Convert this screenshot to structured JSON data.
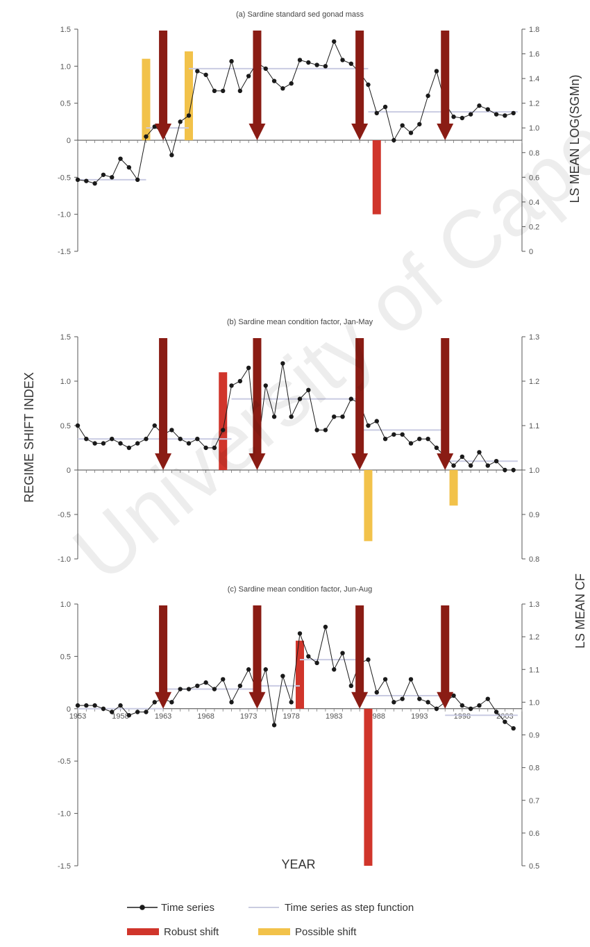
{
  "labels": {
    "left_axis": "REGIME SHIFT INDEX",
    "right_axis_a": "LS MEAN LOG(SGMn)",
    "right_axis_bc": "LS MEAN CF",
    "x_axis": "YEAR"
  },
  "legend": {
    "time_series": "Time series",
    "step_function": "Time series as step function",
    "robust": "Robust shift",
    "possible": "Possible shift"
  },
  "watermark": "University of Cape Town",
  "colors": {
    "robust": "#d0352b",
    "possible": "#f2c24a",
    "arrow": "#8a1c14",
    "series": "#1a1a1a",
    "step": "#c9cbe2"
  },
  "chart_data": [
    {
      "type": "line",
      "title": "(a) Sardine standard sed gonad mass",
      "left_ticks": [
        "1.5",
        "1.0",
        "0.5",
        "0",
        "-0.5",
        "-1.0",
        "-1.5"
      ],
      "right_ticks": [
        "1.8",
        "1.6",
        "1.4",
        "1.2",
        "1.0",
        "0.8",
        "0.6",
        "0.4",
        "0.2",
        "0"
      ],
      "left_ylim": [
        -1.5,
        1.5
      ],
      "right_ylim": [
        0,
        1.8
      ],
      "x_range": [
        1953,
        2005
      ],
      "x_ticks": [],
      "series_values": [
        {
          "x": 1953,
          "y": 0.58
        },
        {
          "x": 1954,
          "y": 0.57
        },
        {
          "x": 1955,
          "y": 0.55
        },
        {
          "x": 1956,
          "y": 0.62
        },
        {
          "x": 1957,
          "y": 0.6
        },
        {
          "x": 1958,
          "y": 0.75
        },
        {
          "x": 1959,
          "y": 0.68
        },
        {
          "x": 1960,
          "y": 0.58
        },
        {
          "x": 1961,
          "y": 0.93
        },
        {
          "x": 1962,
          "y": 1.01
        },
        {
          "x": 1963,
          "y": 0.96
        },
        {
          "x": 1964,
          "y": 0.78
        },
        {
          "x": 1965,
          "y": 1.05
        },
        {
          "x": 1966,
          "y": 1.1
        },
        {
          "x": 1967,
          "y": 1.46
        },
        {
          "x": 1968,
          "y": 1.43
        },
        {
          "x": 1969,
          "y": 1.3
        },
        {
          "x": 1970,
          "y": 1.3
        },
        {
          "x": 1971,
          "y": 1.54
        },
        {
          "x": 1972,
          "y": 1.3
        },
        {
          "x": 1973,
          "y": 1.42
        },
        {
          "x": 1974,
          "y": 1.53
        },
        {
          "x": 1975,
          "y": 1.48
        },
        {
          "x": 1976,
          "y": 1.38
        },
        {
          "x": 1977,
          "y": 1.32
        },
        {
          "x": 1978,
          "y": 1.36
        },
        {
          "x": 1979,
          "y": 1.55
        },
        {
          "x": 1980,
          "y": 1.53
        },
        {
          "x": 1981,
          "y": 1.51
        },
        {
          "x": 1982,
          "y": 1.5
        },
        {
          "x": 1983,
          "y": 1.7
        },
        {
          "x": 1984,
          "y": 1.55
        },
        {
          "x": 1985,
          "y": 1.52
        },
        {
          "x": 1986,
          "y": 1.45
        },
        {
          "x": 1987,
          "y": 1.35
        },
        {
          "x": 1988,
          "y": 1.12
        },
        {
          "x": 1989,
          "y": 1.17
        },
        {
          "x": 1990,
          "y": 0.9
        },
        {
          "x": 1991,
          "y": 1.02
        },
        {
          "x": 1992,
          "y": 0.96
        },
        {
          "x": 1993,
          "y": 1.03
        },
        {
          "x": 1994,
          "y": 1.26
        },
        {
          "x": 1995,
          "y": 1.46
        },
        {
          "x": 1996,
          "y": 1.2
        },
        {
          "x": 1997,
          "y": 1.09
        },
        {
          "x": 1998,
          "y": 1.08
        },
        {
          "x": 1999,
          "y": 1.11
        },
        {
          "x": 2000,
          "y": 1.18
        },
        {
          "x": 2001,
          "y": 1.15
        },
        {
          "x": 2002,
          "y": 1.11
        },
        {
          "x": 2003,
          "y": 1.1
        },
        {
          "x": 2004,
          "y": 1.12
        }
      ],
      "step": [
        {
          "x0": 1953,
          "x1": 1961,
          "y": 0.58
        },
        {
          "x0": 1961,
          "x1": 1966,
          "y": 1.0
        },
        {
          "x0": 1966,
          "x1": 1987,
          "y": 1.48
        },
        {
          "x0": 1987,
          "x1": 2004.5,
          "y": 1.13
        }
      ],
      "bars": [
        {
          "kind": "possible",
          "year": 1961,
          "value": 1.1
        },
        {
          "kind": "possible",
          "year": 1966,
          "value": 1.2
        },
        {
          "kind": "robust",
          "year": 1988,
          "value": -1.0
        }
      ],
      "arrows": [
        1963,
        1974,
        1986,
        1996
      ]
    },
    {
      "type": "line",
      "title": "(b) Sardine mean condition factor, Jan-May",
      "left_ticks": [
        "1.5",
        "1.0",
        "0.5",
        "0",
        "-0.5",
        "-1.0"
      ],
      "right_ticks": [
        "1.3",
        "1.2",
        "1.1",
        "1.0",
        "0.9",
        "0.8"
      ],
      "left_ylim": [
        -1.0,
        1.5
      ],
      "right_ylim": [
        0.8,
        1.3
      ],
      "x_range": [
        1953,
        2005
      ],
      "x_ticks": [],
      "series_values": [
        {
          "x": 1953,
          "y": 1.1
        },
        {
          "x": 1954,
          "y": 1.07
        },
        {
          "x": 1955,
          "y": 1.06
        },
        {
          "x": 1956,
          "y": 1.06
        },
        {
          "x": 1957,
          "y": 1.07
        },
        {
          "x": 1958,
          "y": 1.06
        },
        {
          "x": 1959,
          "y": 1.05
        },
        {
          "x": 1960,
          "y": 1.06
        },
        {
          "x": 1961,
          "y": 1.07
        },
        {
          "x": 1962,
          "y": 1.1
        },
        {
          "x": 1963,
          "y": 1.08
        },
        {
          "x": 1964,
          "y": 1.09
        },
        {
          "x": 1965,
          "y": 1.07
        },
        {
          "x": 1966,
          "y": 1.06
        },
        {
          "x": 1967,
          "y": 1.07
        },
        {
          "x": 1968,
          "y": 1.05
        },
        {
          "x": 1969,
          "y": 1.05
        },
        {
          "x": 1970,
          "y": 1.09
        },
        {
          "x": 1971,
          "y": 1.19
        },
        {
          "x": 1972,
          "y": 1.2
        },
        {
          "x": 1973,
          "y": 1.23
        },
        {
          "x": 1974,
          "y": 1.04
        },
        {
          "x": 1975,
          "y": 1.19
        },
        {
          "x": 1976,
          "y": 1.12
        },
        {
          "x": 1977,
          "y": 1.24
        },
        {
          "x": 1978,
          "y": 1.12
        },
        {
          "x": 1979,
          "y": 1.16
        },
        {
          "x": 1980,
          "y": 1.18
        },
        {
          "x": 1981,
          "y": 1.09
        },
        {
          "x": 1982,
          "y": 1.09
        },
        {
          "x": 1983,
          "y": 1.12
        },
        {
          "x": 1984,
          "y": 1.12
        },
        {
          "x": 1985,
          "y": 1.16
        },
        {
          "x": 1986,
          "y": 1.15
        },
        {
          "x": 1987,
          "y": 1.1
        },
        {
          "x": 1988,
          "y": 1.11
        },
        {
          "x": 1989,
          "y": 1.07
        },
        {
          "x": 1990,
          "y": 1.08
        },
        {
          "x": 1991,
          "y": 1.08
        },
        {
          "x": 1992,
          "y": 1.06
        },
        {
          "x": 1993,
          "y": 1.07
        },
        {
          "x": 1994,
          "y": 1.07
        },
        {
          "x": 1995,
          "y": 1.05
        },
        {
          "x": 1996,
          "y": 1.03
        },
        {
          "x": 1997,
          "y": 1.01
        },
        {
          "x": 1998,
          "y": 1.03
        },
        {
          "x": 1999,
          "y": 1.01
        },
        {
          "x": 2000,
          "y": 1.04
        },
        {
          "x": 2001,
          "y": 1.01
        },
        {
          "x": 2002,
          "y": 1.02
        },
        {
          "x": 2003,
          "y": 1.0
        },
        {
          "x": 2004,
          "y": 1.0
        }
      ],
      "step": [
        {
          "x0": 1953,
          "x1": 1971,
          "y": 1.07
        },
        {
          "x0": 1971,
          "x1": 1986,
          "y": 1.16
        },
        {
          "x0": 1986,
          "x1": 1996,
          "y": 1.09
        },
        {
          "x0": 1996,
          "x1": 2004.5,
          "y": 1.02
        }
      ],
      "bars": [
        {
          "kind": "robust",
          "year": 1970,
          "value": 1.1
        },
        {
          "kind": "possible",
          "year": 1987,
          "value": -0.8
        },
        {
          "kind": "possible",
          "year": 1997,
          "value": -0.4
        }
      ],
      "arrows": [
        1963,
        1974,
        1986,
        1996
      ]
    },
    {
      "type": "line",
      "title": "(c) Sardine mean condition factor, Jun-Aug",
      "left_ticks": [
        "1.0",
        "0.5",
        "0",
        "-0.5",
        "-1.0",
        "-1.5"
      ],
      "right_ticks": [
        "1.3",
        "1.2",
        "1.1",
        "1.0",
        "0.9",
        "0.8",
        "0.7",
        "0.6",
        "0.5"
      ],
      "left_ylim": [
        -1.5,
        1.0
      ],
      "right_ylim": [
        0.5,
        1.3
      ],
      "x_range": [
        1953,
        2005
      ],
      "x_ticks": [
        "1953",
        "1958",
        "1963",
        "1968",
        "1973",
        "1978",
        "1983",
        "1988",
        "1993",
        "1998",
        "2003"
      ],
      "series_values": [
        {
          "x": 1953,
          "y": 0.99
        },
        {
          "x": 1954,
          "y": 0.99
        },
        {
          "x": 1955,
          "y": 0.99
        },
        {
          "x": 1956,
          "y": 0.98
        },
        {
          "x": 1957,
          "y": 0.97
        },
        {
          "x": 1958,
          "y": 0.99
        },
        {
          "x": 1959,
          "y": 0.96
        },
        {
          "x": 1960,
          "y": 0.97
        },
        {
          "x": 1961,
          "y": 0.97
        },
        {
          "x": 1962,
          "y": 1.0
        },
        {
          "x": 1963,
          "y": 1.01
        },
        {
          "x": 1964,
          "y": 1.0
        },
        {
          "x": 1965,
          "y": 1.04
        },
        {
          "x": 1966,
          "y": 1.04
        },
        {
          "x": 1967,
          "y": 1.05
        },
        {
          "x": 1968,
          "y": 1.06
        },
        {
          "x": 1969,
          "y": 1.04
        },
        {
          "x": 1970,
          "y": 1.07
        },
        {
          "x": 1971,
          "y": 1.0
        },
        {
          "x": 1972,
          "y": 1.05
        },
        {
          "x": 1973,
          "y": 1.1
        },
        {
          "x": 1974,
          "y": 1.03
        },
        {
          "x": 1975,
          "y": 1.1
        },
        {
          "x": 1976,
          "y": 0.93
        },
        {
          "x": 1977,
          "y": 1.08
        },
        {
          "x": 1978,
          "y": 1.0
        },
        {
          "x": 1979,
          "y": 1.21
        },
        {
          "x": 1980,
          "y": 1.14
        },
        {
          "x": 1981,
          "y": 1.12
        },
        {
          "x": 1982,
          "y": 1.23
        },
        {
          "x": 1983,
          "y": 1.1
        },
        {
          "x": 1984,
          "y": 1.15
        },
        {
          "x": 1985,
          "y": 1.05
        },
        {
          "x": 1986,
          "y": 1.12
        },
        {
          "x": 1987,
          "y": 1.13
        },
        {
          "x": 1988,
          "y": 1.03
        },
        {
          "x": 1989,
          "y": 1.07
        },
        {
          "x": 1990,
          "y": 1.0
        },
        {
          "x": 1991,
          "y": 1.01
        },
        {
          "x": 1992,
          "y": 1.07
        },
        {
          "x": 1993,
          "y": 1.01
        },
        {
          "x": 1994,
          "y": 1.0
        },
        {
          "x": 1995,
          "y": 0.98
        },
        {
          "x": 1996,
          "y": 1.0
        },
        {
          "x": 1997,
          "y": 1.02
        },
        {
          "x": 1998,
          "y": 0.99
        },
        {
          "x": 1999,
          "y": 0.98
        },
        {
          "x": 2000,
          "y": 0.99
        },
        {
          "x": 2001,
          "y": 1.01
        },
        {
          "x": 2002,
          "y": 0.97
        },
        {
          "x": 2003,
          "y": 0.94
        },
        {
          "x": 2004,
          "y": 0.92
        }
      ],
      "step": [
        {
          "x0": 1953,
          "x1": 1963,
          "y": 0.98
        },
        {
          "x0": 1963,
          "x1": 1974,
          "y": 1.04
        },
        {
          "x0": 1974,
          "x1": 1979,
          "y": 1.05
        },
        {
          "x0": 1979,
          "x1": 1986,
          "y": 1.13
        },
        {
          "x0": 1986,
          "x1": 1996,
          "y": 1.02
        },
        {
          "x0": 1996,
          "x1": 2004.5,
          "y": 0.96
        }
      ],
      "bars": [
        {
          "kind": "robust",
          "year": 1979,
          "value": 0.65
        },
        {
          "kind": "robust",
          "year": 1987,
          "value": -1.5
        }
      ],
      "arrows": [
        1963,
        1974,
        1986,
        1996
      ]
    }
  ]
}
